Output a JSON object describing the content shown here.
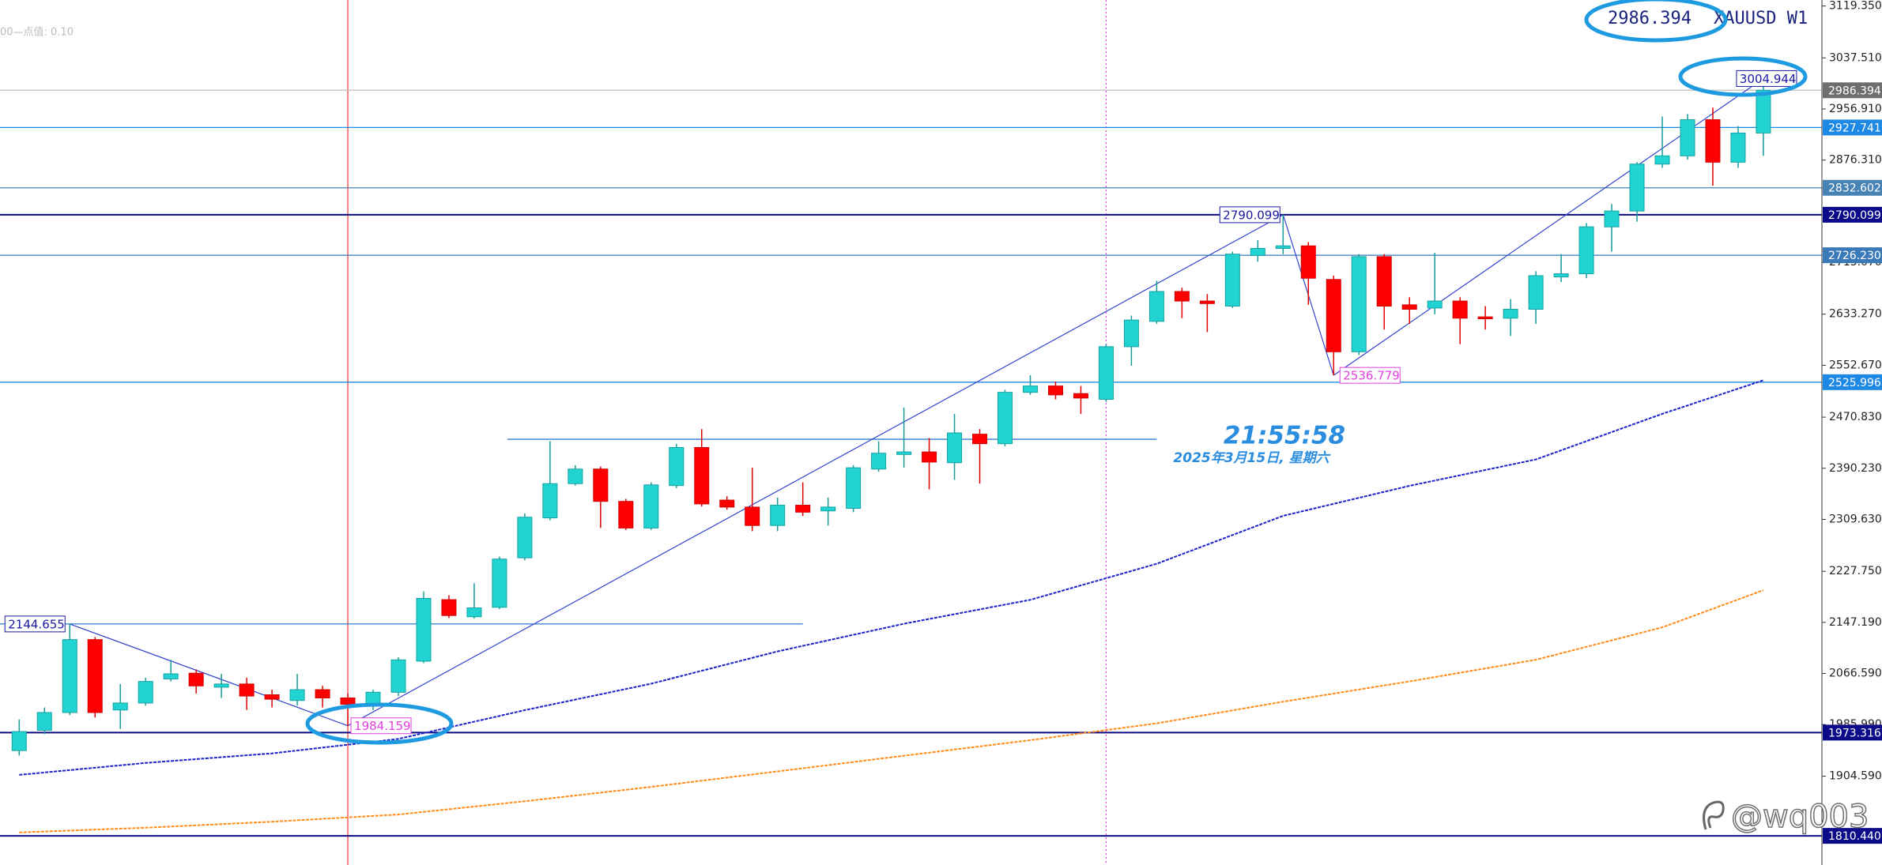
{
  "chart_data": {
    "type": "candlestick",
    "symbol": "XAUUSD W1",
    "info": "00—点值: 0.10",
    "clock": "21:55:58",
    "date": "2025年3月15日, 星期六",
    "watermark": "@wq003",
    "colors": {
      "up": "#22d3d3",
      "down": "#ff0000"
    },
    "ylim": [
      1764.5,
      3128.8
    ],
    "yticks": [
      {
        "value": 3119.35,
        "label": "3119.350"
      },
      {
        "value": 3037.51,
        "label": "3037.510"
      },
      {
        "value": 2956.91,
        "label": "2956.910"
      },
      {
        "value": 2876.31,
        "label": "2876.310"
      },
      {
        "value": 2715.07,
        "label": "2715.070"
      },
      {
        "value": 2633.27,
        "label": "2633.270"
      },
      {
        "value": 2552.67,
        "label": "2552.670"
      },
      {
        "value": 2470.83,
        "label": "2470.830"
      },
      {
        "value": 2390.23,
        "label": "2390.230"
      },
      {
        "value": 2309.63,
        "label": "2309.630"
      },
      {
        "value": 2227.75,
        "label": "2227.750"
      },
      {
        "value": 2147.19,
        "label": "2147.190"
      },
      {
        "value": 2066.59,
        "label": "2066.590"
      },
      {
        "value": 1985.99,
        "label": "1985.990"
      },
      {
        "value": 1904.59,
        "label": "1904.590"
      }
    ],
    "open": [
      1945,
      1977,
      2005,
      2120,
      2009,
      2020,
      2058,
      2067,
      2045,
      2050,
      2033,
      2024,
      2041,
      2028,
      2018,
      2037,
      2086,
      2183,
      2156,
      2171,
      2249,
      2312,
      2366,
      2389,
      2338,
      2296,
      2363,
      2423,
      2340,
      2329,
      2300,
      2332,
      2323,
      2327,
      2389,
      2412,
      2416,
      2399,
      2444,
      2429,
      2510,
      2520,
      2508,
      2499,
      2582,
      2622,
      2669,
      2654,
      2646,
      2726,
      2737,
      2741,
      2688,
      2574,
      2724,
      2648,
      2643,
      2654,
      2629,
      2627,
      2641,
      2692,
      2697,
      2771,
      2796,
      2870,
      2883,
      2940,
      2873,
      2919
    ],
    "high": [
      1994,
      2013,
      2144.655,
      2124,
      2050,
      2060,
      2088,
      2073,
      2066,
      2060,
      2041,
      2066,
      2047,
      2035,
      2041,
      2092,
      2196,
      2190,
      2209,
      2251,
      2319,
      2433,
      2395,
      2393,
      2342,
      2368,
      2429,
      2452,
      2346,
      2391,
      2344,
      2368,
      2344,
      2395,
      2433,
      2486,
      2438,
      2476,
      2452,
      2514,
      2537,
      2527,
      2520,
      2586,
      2631,
      2686,
      2675,
      2665,
      2732,
      2750,
      2790.099,
      2747,
      2694,
      2728,
      2728,
      2660,
      2730,
      2660,
      2646,
      2657,
      2701,
      2728,
      2777,
      2807,
      2873,
      2945,
      2949,
      2959,
      2930,
      3004.944
    ],
    "low": [
      1937,
      1971,
      2001,
      1997,
      1979,
      2016,
      2054,
      2035,
      2028,
      2009,
      2013,
      2016,
      2013,
      1984.159,
      2009,
      2031,
      2083,
      2154,
      2153,
      2168,
      2245,
      2308,
      2363,
      2296,
      2293,
      2293,
      2359,
      2330,
      2325,
      2291,
      2291,
      2315,
      2300,
      2321,
      2385,
      2391,
      2357,
      2372,
      2366,
      2425,
      2506,
      2499,
      2476,
      2495,
      2552,
      2618,
      2627,
      2605,
      2643,
      2716,
      2728,
      2648,
      2536.779,
      2569,
      2609,
      2618,
      2633,
      2586,
      2609,
      2599,
      2618,
      2684,
      2690,
      2732,
      2779,
      2864,
      2877,
      2836,
      2864,
      2883
    ],
    "close": [
      1975,
      2005,
      2120,
      2005,
      2020,
      2054,
      2066,
      2047,
      2050,
      2031,
      2026,
      2041,
      2028,
      2018,
      2037,
      2088,
      2185,
      2158,
      2170,
      2247,
      2313,
      2366,
      2389,
      2338,
      2296,
      2364,
      2423,
      2334,
      2329,
      2300,
      2332,
      2321,
      2329,
      2391,
      2414,
      2416,
      2400,
      2446,
      2429,
      2510,
      2520,
      2506,
      2501,
      2582,
      2624,
      2669,
      2654,
      2650,
      2728,
      2737,
      2741,
      2690,
      2574,
      2724,
      2646,
      2641,
      2654,
      2627,
      2626,
      2641,
      2694,
      2697,
      2771,
      2796,
      2870,
      2883,
      2940,
      2873,
      2919,
      2986.394
    ],
    "levels": [
      {
        "value": 2927.741,
        "color": "#1e88e5"
      },
      {
        "value": 2832.602,
        "color": "#4682b4"
      },
      {
        "value": 2790.099,
        "color": "#0b0b8a"
      },
      {
        "value": 2726.23,
        "label": "2726.230",
        "color": "#3a7ab8"
      },
      {
        "value": 2525.996,
        "color": "#1e88e5"
      },
      {
        "value": 1973.316,
        "color": "#0b0b8a"
      },
      {
        "value": 1810.44,
        "label": "1810.440",
        "color": "#0b0b8a"
      }
    ],
    "segments": [
      2144.655,
      2436
    ],
    "moving_averages": [
      {
        "color": "#1a22c8",
        "x": [
          0,
          5,
          10,
          15,
          20,
          25,
          30,
          35,
          40,
          45,
          50,
          55,
          60,
          65,
          69
        ],
        "values": [
          1906.6,
          1925.5,
          1940.6,
          1963.3,
          2008.7,
          2050.4,
          2101.4,
          2145,
          2182.8,
          2239.6,
          2315.2,
          2362.5,
          2404.2,
          2476,
          2529
        ]
      },
      {
        "color": "#ff8c1a",
        "x": [
          0,
          5,
          10,
          15,
          20,
          25,
          30,
          35,
          40,
          45,
          50,
          55,
          60,
          65,
          69
        ],
        "values": [
          1815.8,
          1823.3,
          1832.8,
          1844.1,
          1865,
          1887.7,
          1912.2,
          1936.8,
          1961.4,
          1987.9,
          2022,
          2054.1,
          2088.2,
          2139.3,
          2198
        ]
      }
    ]
  }
}
